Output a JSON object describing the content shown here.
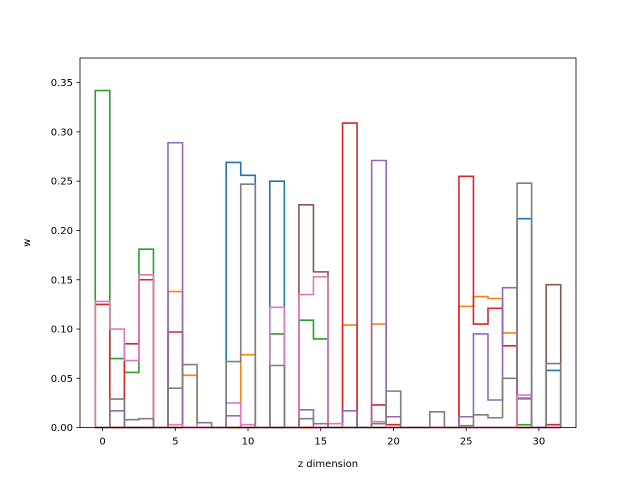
{
  "chart_data": {
    "type": "line",
    "style": "step-histogram",
    "title": "",
    "xlabel": "z dimension",
    "ylabel": "w",
    "xlim": [
      -1.55,
      32.55
    ],
    "ylim": [
      0,
      0.375
    ],
    "xticks": [
      0,
      5,
      10,
      15,
      20,
      25,
      30
    ],
    "yticks": [
      0.0,
      0.05,
      0.1,
      0.15,
      0.2,
      0.25,
      0.3,
      0.35
    ],
    "ytick_labels": [
      "0.00",
      "0.05",
      "0.10",
      "0.15",
      "0.20",
      "0.25",
      "0.30",
      "0.35"
    ],
    "grid": false,
    "legend": "none",
    "x": [
      0,
      1,
      2,
      3,
      4,
      5,
      6,
      7,
      8,
      9,
      10,
      11,
      12,
      13,
      14,
      15,
      16,
      17,
      18,
      19,
      20,
      21,
      22,
      23,
      24,
      25,
      26,
      27,
      28,
      29,
      30,
      31
    ],
    "series": [
      {
        "color": "#1f77b4",
        "values": [
          0,
          0,
          0,
          0,
          0,
          0,
          0,
          0,
          0,
          0.269,
          0.256,
          0,
          0.25,
          0,
          0,
          0,
          0,
          0,
          0,
          0,
          0,
          0,
          0,
          0,
          0,
          0,
          0,
          0,
          0,
          0.212,
          0,
          0.058
        ]
      },
      {
        "color": "#ff7f0e",
        "values": [
          0,
          0,
          0,
          0,
          0,
          0.138,
          0.053,
          0,
          0,
          0,
          0.074,
          0,
          0,
          0,
          0,
          0,
          0,
          0.104,
          0,
          0.105,
          0,
          0,
          0,
          0,
          0,
          0.123,
          0.133,
          0.131,
          0.096,
          0.029,
          0,
          0
        ]
      },
      {
        "color": "#2ca02c",
        "values": [
          0.342,
          0.07,
          0.056,
          0.181,
          0,
          0,
          0,
          0,
          0,
          0,
          0,
          0,
          0.095,
          0,
          0.109,
          0.09,
          0,
          0,
          0,
          0,
          0,
          0,
          0,
          0,
          0,
          0,
          0,
          0,
          0,
          0.003,
          0,
          0
        ]
      },
      {
        "color": "#d62728",
        "values": [
          0.125,
          0,
          0.085,
          0.15,
          0,
          0.097,
          0,
          0,
          0,
          0,
          0,
          0,
          0,
          0,
          0,
          0,
          0,
          0.309,
          0,
          0.023,
          0.003,
          0,
          0,
          0,
          0,
          0.255,
          0.105,
          0.121,
          0.083,
          0,
          0,
          0.003
        ]
      },
      {
        "color": "#9467bd",
        "values": [
          0,
          0.017,
          0,
          0,
          0,
          0.289,
          0,
          0,
          0,
          0.012,
          0,
          0,
          0,
          0,
          0.018,
          0,
          0,
          0.017,
          0,
          0.271,
          0.011,
          0,
          0,
          0,
          0,
          0.011,
          0.095,
          0.028,
          0.142,
          0.03,
          0,
          0
        ]
      },
      {
        "color": "#8c564b",
        "values": [
          0,
          0,
          0,
          0,
          0,
          0,
          0,
          0,
          0,
          0,
          0,
          0,
          0,
          0,
          0.226,
          0.158,
          0,
          0,
          0,
          0,
          0,
          0,
          0,
          0,
          0,
          0,
          0,
          0,
          0,
          0,
          0,
          0.145
        ]
      },
      {
        "color": "#e377c2",
        "values": [
          0.128,
          0.1,
          0.068,
          0.155,
          0,
          0.003,
          0,
          0,
          0,
          0.025,
          0.003,
          0,
          0.122,
          0,
          0.135,
          0.153,
          0.004,
          0,
          0,
          0.006,
          0,
          0,
          0,
          0,
          0,
          0,
          0,
          0,
          0,
          0.033,
          0,
          0
        ]
      },
      {
        "color": "#7f7f7f",
        "values": [
          0,
          0.029,
          0.008,
          0.009,
          0,
          0.04,
          0.064,
          0.005,
          0,
          0.067,
          0.247,
          0,
          0.063,
          0,
          0.009,
          0.004,
          0,
          0,
          0,
          0.004,
          0.037,
          0,
          0,
          0.016,
          0,
          0.002,
          0.013,
          0.01,
          0.05,
          0.248,
          0,
          0.065
        ]
      }
    ]
  }
}
